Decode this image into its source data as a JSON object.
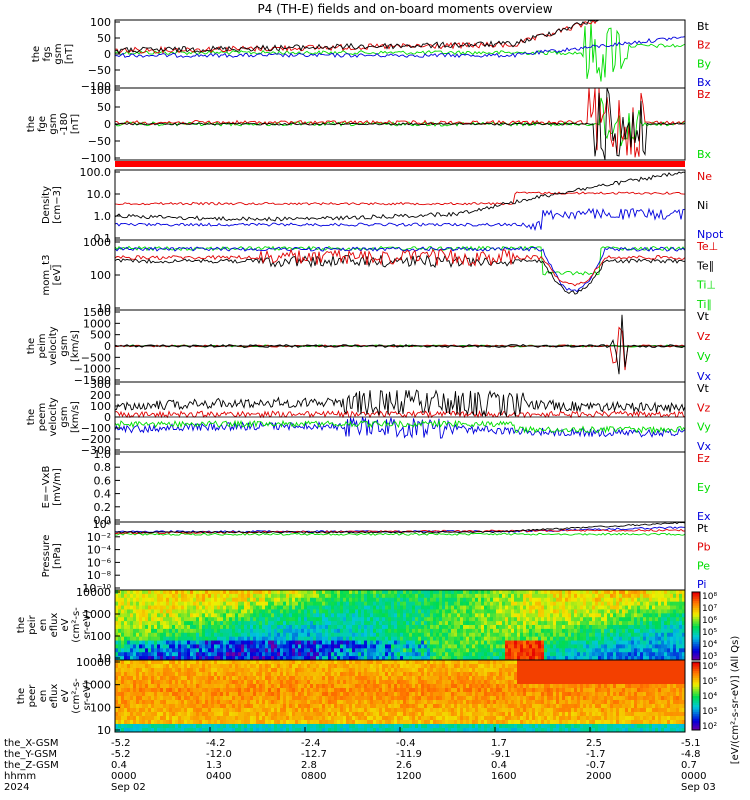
{
  "title": "P4 (TH-E) fields and on-board moments overview",
  "colors": {
    "black": "#000000",
    "red": "#e00000",
    "green": "#00dd00",
    "blue": "#0000dd",
    "band": "#ff0000"
  },
  "chart_data": [
    {
      "type": "line",
      "id": "fgs_gsm",
      "ylabel": [
        "the",
        "fgs",
        "gsm",
        "[nT]"
      ],
      "ylim": [
        -100,
        100
      ],
      "yticks": [
        "100",
        "50",
        "0",
        "−50",
        "−100"
      ],
      "series": [
        {
          "name": "Bt",
          "color": "black"
        },
        {
          "name": "Bz",
          "color": "red"
        },
        {
          "name": "By",
          "color": "green"
        },
        {
          "name": "Bx",
          "color": "blue"
        }
      ]
    },
    {
      "type": "line",
      "id": "fge_gsm",
      "ylabel": [
        "the",
        "fge",
        "gsm",
        "-180",
        "[nT]"
      ],
      "ylim": [
        -120,
        120
      ],
      "yticks": [
        "100",
        "50",
        "0",
        "−50",
        "−100"
      ],
      "series": [
        {
          "name": "Bz",
          "color": "red"
        },
        {
          "name": "Bx",
          "color": "green"
        }
      ]
    },
    {
      "type": "line",
      "id": "density",
      "ylabel": [
        "Density",
        "[cm−3]"
      ],
      "ylim": [
        0.07,
        120
      ],
      "log": true,
      "yticks": [
        "100.0",
        "10.0",
        "1.0",
        "0.1"
      ],
      "series": [
        {
          "name": "Ne",
          "color": "red"
        },
        {
          "name": "Ni",
          "color": "black"
        },
        {
          "name": "Npot",
          "color": "blue"
        }
      ]
    },
    {
      "type": "line",
      "id": "temperature",
      "ylabel": [
        "mom_t3",
        "[eV]"
      ],
      "ylim": [
        4,
        3000
      ],
      "log": true,
      "yticks": [
        "1000",
        "100",
        "10"
      ],
      "series": [
        {
          "name": "Te⊥",
          "color": "red"
        },
        {
          "name": "Te∥",
          "color": "black"
        },
        {
          "name": "Ti⊥",
          "color": "green"
        },
        {
          "name": "Ti∥",
          "color": "green"
        }
      ]
    },
    {
      "type": "line",
      "id": "peim_velocity",
      "ylabel": [
        "the",
        "peim",
        "velocity",
        "gsm",
        "[km/s]"
      ],
      "ylim": [
        -1600,
        1600
      ],
      "yticks": [
        "1500",
        "1000",
        "500",
        "0",
        "−500",
        "−1000",
        "−1500"
      ],
      "series": [
        {
          "name": "Vt",
          "color": "black"
        },
        {
          "name": "Vz",
          "color": "red"
        },
        {
          "name": "Vy",
          "color": "green"
        },
        {
          "name": "Vx",
          "color": "blue"
        }
      ]
    },
    {
      "type": "line",
      "id": "peem_velocity",
      "ylabel": [
        "the",
        "peem",
        "velocity",
        "gsm",
        "[km/s]"
      ],
      "ylim": [
        -300,
        300
      ],
      "yticks": [
        "300",
        "200",
        "100",
        "0",
        "−100",
        "−200",
        "−300"
      ],
      "series": [
        {
          "name": "Vt",
          "color": "black"
        },
        {
          "name": "Vz",
          "color": "red"
        },
        {
          "name": "Vy",
          "color": "green"
        },
        {
          "name": "Vx",
          "color": "blue"
        }
      ]
    },
    {
      "type": "line",
      "id": "efield",
      "ylabel": [
        "E=−VxB",
        "[mV/m]"
      ],
      "ylim": [
        0,
        1
      ],
      "yticks": [
        "1.0",
        "0.8",
        "0.6",
        "0.4",
        "0.2",
        "0.0"
      ],
      "series": [
        {
          "name": "Ez",
          "color": "red"
        },
        {
          "name": "Ey",
          "color": "green"
        },
        {
          "name": "Ex",
          "color": "blue"
        }
      ]
    },
    {
      "type": "line",
      "id": "pressure",
      "ylabel": [
        "Pressure",
        "[nPa]"
      ],
      "log": true,
      "yticks": [
        "10⁰",
        "10⁻²",
        "10⁻⁴",
        "10⁻⁶",
        "10⁻⁸",
        "10⁻¹⁰"
      ],
      "series": [
        {
          "name": "Pt",
          "color": "black"
        },
        {
          "name": "Pb",
          "color": "red"
        },
        {
          "name": "Pe",
          "color": "green"
        },
        {
          "name": "Pi",
          "color": "blue"
        }
      ]
    },
    {
      "type": "heatmap",
      "id": "peir_eflux",
      "ylabel": [
        "the",
        "peir",
        "en",
        "eflux",
        "eV",
        "(cm²-s-",
        "sr-eV)"
      ],
      "yticks": [
        "10000",
        "1000",
        "100",
        "10"
      ]
    },
    {
      "type": "heatmap",
      "id": "peer_eflux",
      "ylabel": [
        "the",
        "peer",
        "en",
        "eflux",
        "eV",
        "(cm²-s-",
        "sr-eV)"
      ],
      "yticks": [
        "10000",
        "1000",
        "100",
        "10"
      ]
    }
  ],
  "colorbar": {
    "label": "[eV/(cm²-s-sr-eV)] (All Qs)",
    "top_ticks": [
      "10⁸",
      "10⁷",
      "10⁶",
      "10⁵",
      "10⁴",
      "10³"
    ],
    "bottom_ticks": [
      "10⁶",
      "10⁵",
      "10⁴",
      "10³",
      "10²"
    ]
  },
  "xaxis": {
    "row_labels": [
      "the_X-GSM",
      "the_Y-GSM",
      "the_Z-GSM",
      "hhmm",
      "2024"
    ],
    "columns": [
      [
        "-5.2",
        "-5.2",
        "0.4",
        "0000",
        "Sep 02"
      ],
      [
        "-4.2",
        "-12.0",
        "1.3",
        "0400",
        ""
      ],
      [
        "-2.4",
        "-12.7",
        "2.8",
        "0800",
        ""
      ],
      [
        "-0.4",
        "-11.9",
        "2.6",
        "1200",
        ""
      ],
      [
        "1.7",
        "-9.1",
        "0.4",
        "1600",
        ""
      ],
      [
        "2.5",
        "-1.7",
        "-0.7",
        "2000",
        ""
      ],
      [
        "-5.1",
        "-4.8",
        "0.7",
        "0000",
        "Sep 03"
      ]
    ]
  }
}
